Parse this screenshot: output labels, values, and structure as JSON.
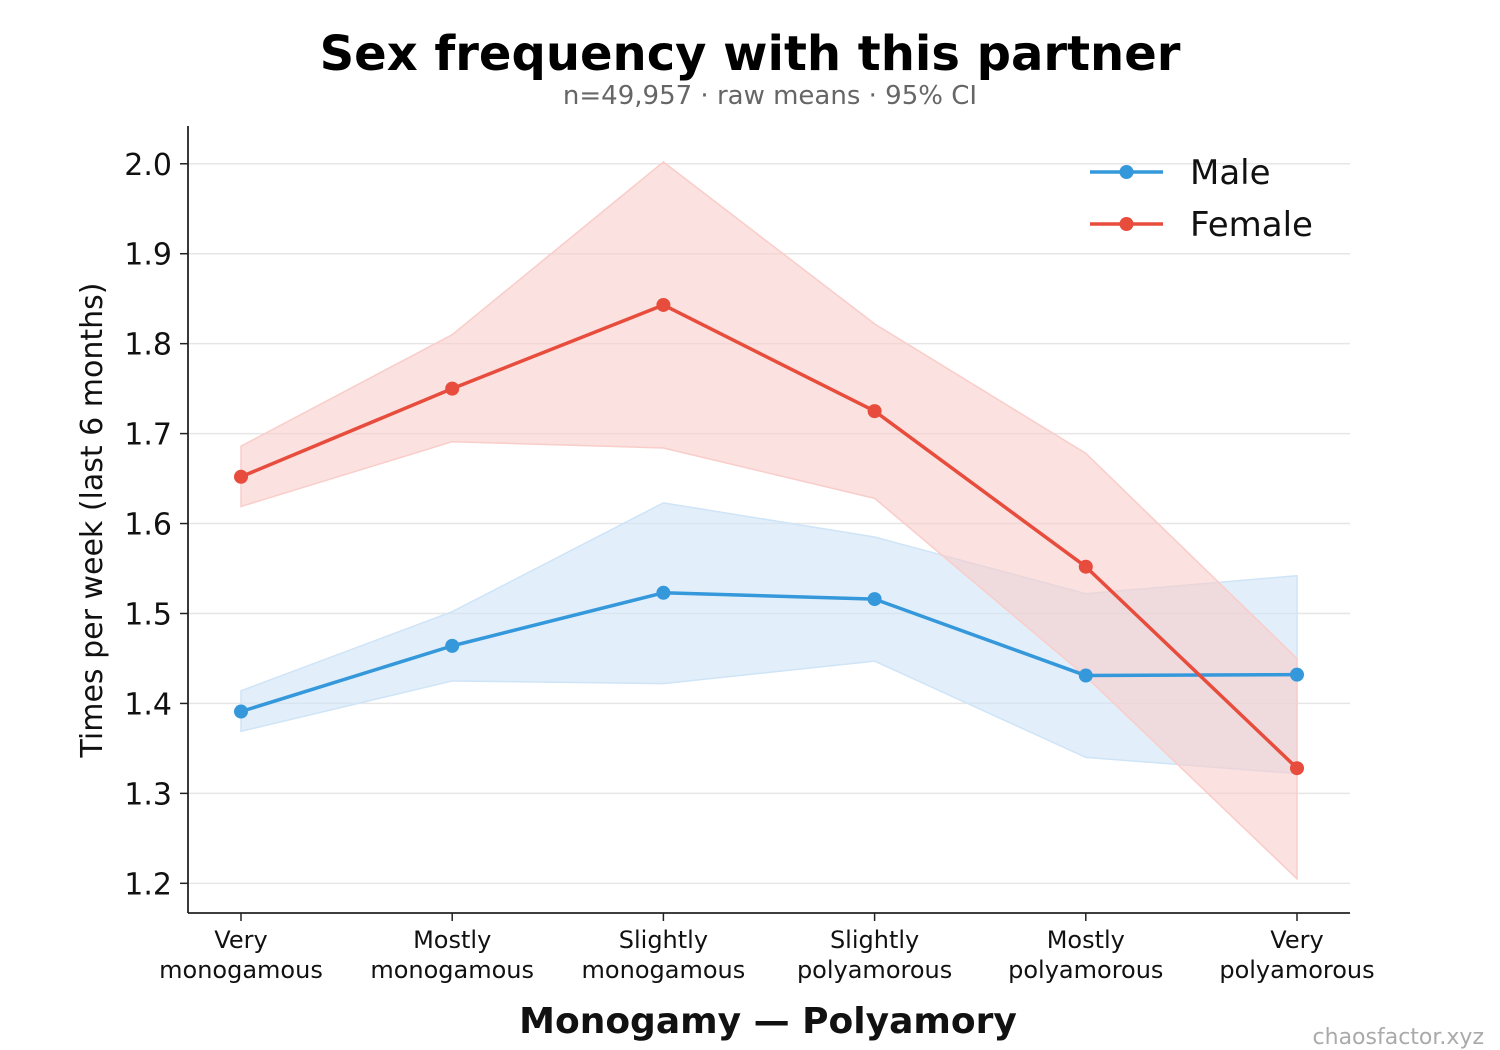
{
  "chart_data": {
    "type": "line",
    "title": "Sex frequency with this partner",
    "subtitle": "n=49,957 · raw means · 95% CI",
    "xlabel": "Monogamy — Polyamory",
    "ylabel": "Times per week (last 6 months)",
    "categories": [
      [
        "Very",
        "monogamous"
      ],
      [
        "Mostly",
        "monogamous"
      ],
      [
        "Slightly",
        "monogamous"
      ],
      [
        "Slightly",
        "polyamorous"
      ],
      [
        "Mostly",
        "polyamorous"
      ],
      [
        "Very",
        "polyamorous"
      ]
    ],
    "ylim": [
      1.167,
      2.042
    ],
    "yticks": [
      1.2,
      1.3,
      1.4,
      1.5,
      1.6,
      1.7,
      1.8,
      1.9,
      2.0
    ],
    "grid": "horizontal",
    "legend_position": "top-right",
    "series": [
      {
        "name": "Male",
        "color": "#3498db",
        "fill_color": "#cfe4f7",
        "values": [
          1.391,
          1.464,
          1.523,
          1.516,
          1.431,
          1.432
        ],
        "ci_low": [
          1.369,
          1.425,
          1.422,
          1.447,
          1.34,
          1.322
        ],
        "ci_high": [
          1.414,
          1.502,
          1.623,
          1.585,
          1.522,
          1.542
        ]
      },
      {
        "name": "Female",
        "color": "#e74c3c",
        "fill_color": "#f9cdc9",
        "values": [
          1.652,
          1.75,
          1.843,
          1.725,
          1.552,
          1.328
        ],
        "ci_low": [
          1.619,
          1.691,
          1.684,
          1.628,
          1.43,
          1.205
        ],
        "ci_high": [
          1.686,
          1.81,
          2.002,
          1.822,
          1.678,
          1.45
        ]
      }
    ]
  },
  "watermark": "chaosfactor.xyz"
}
